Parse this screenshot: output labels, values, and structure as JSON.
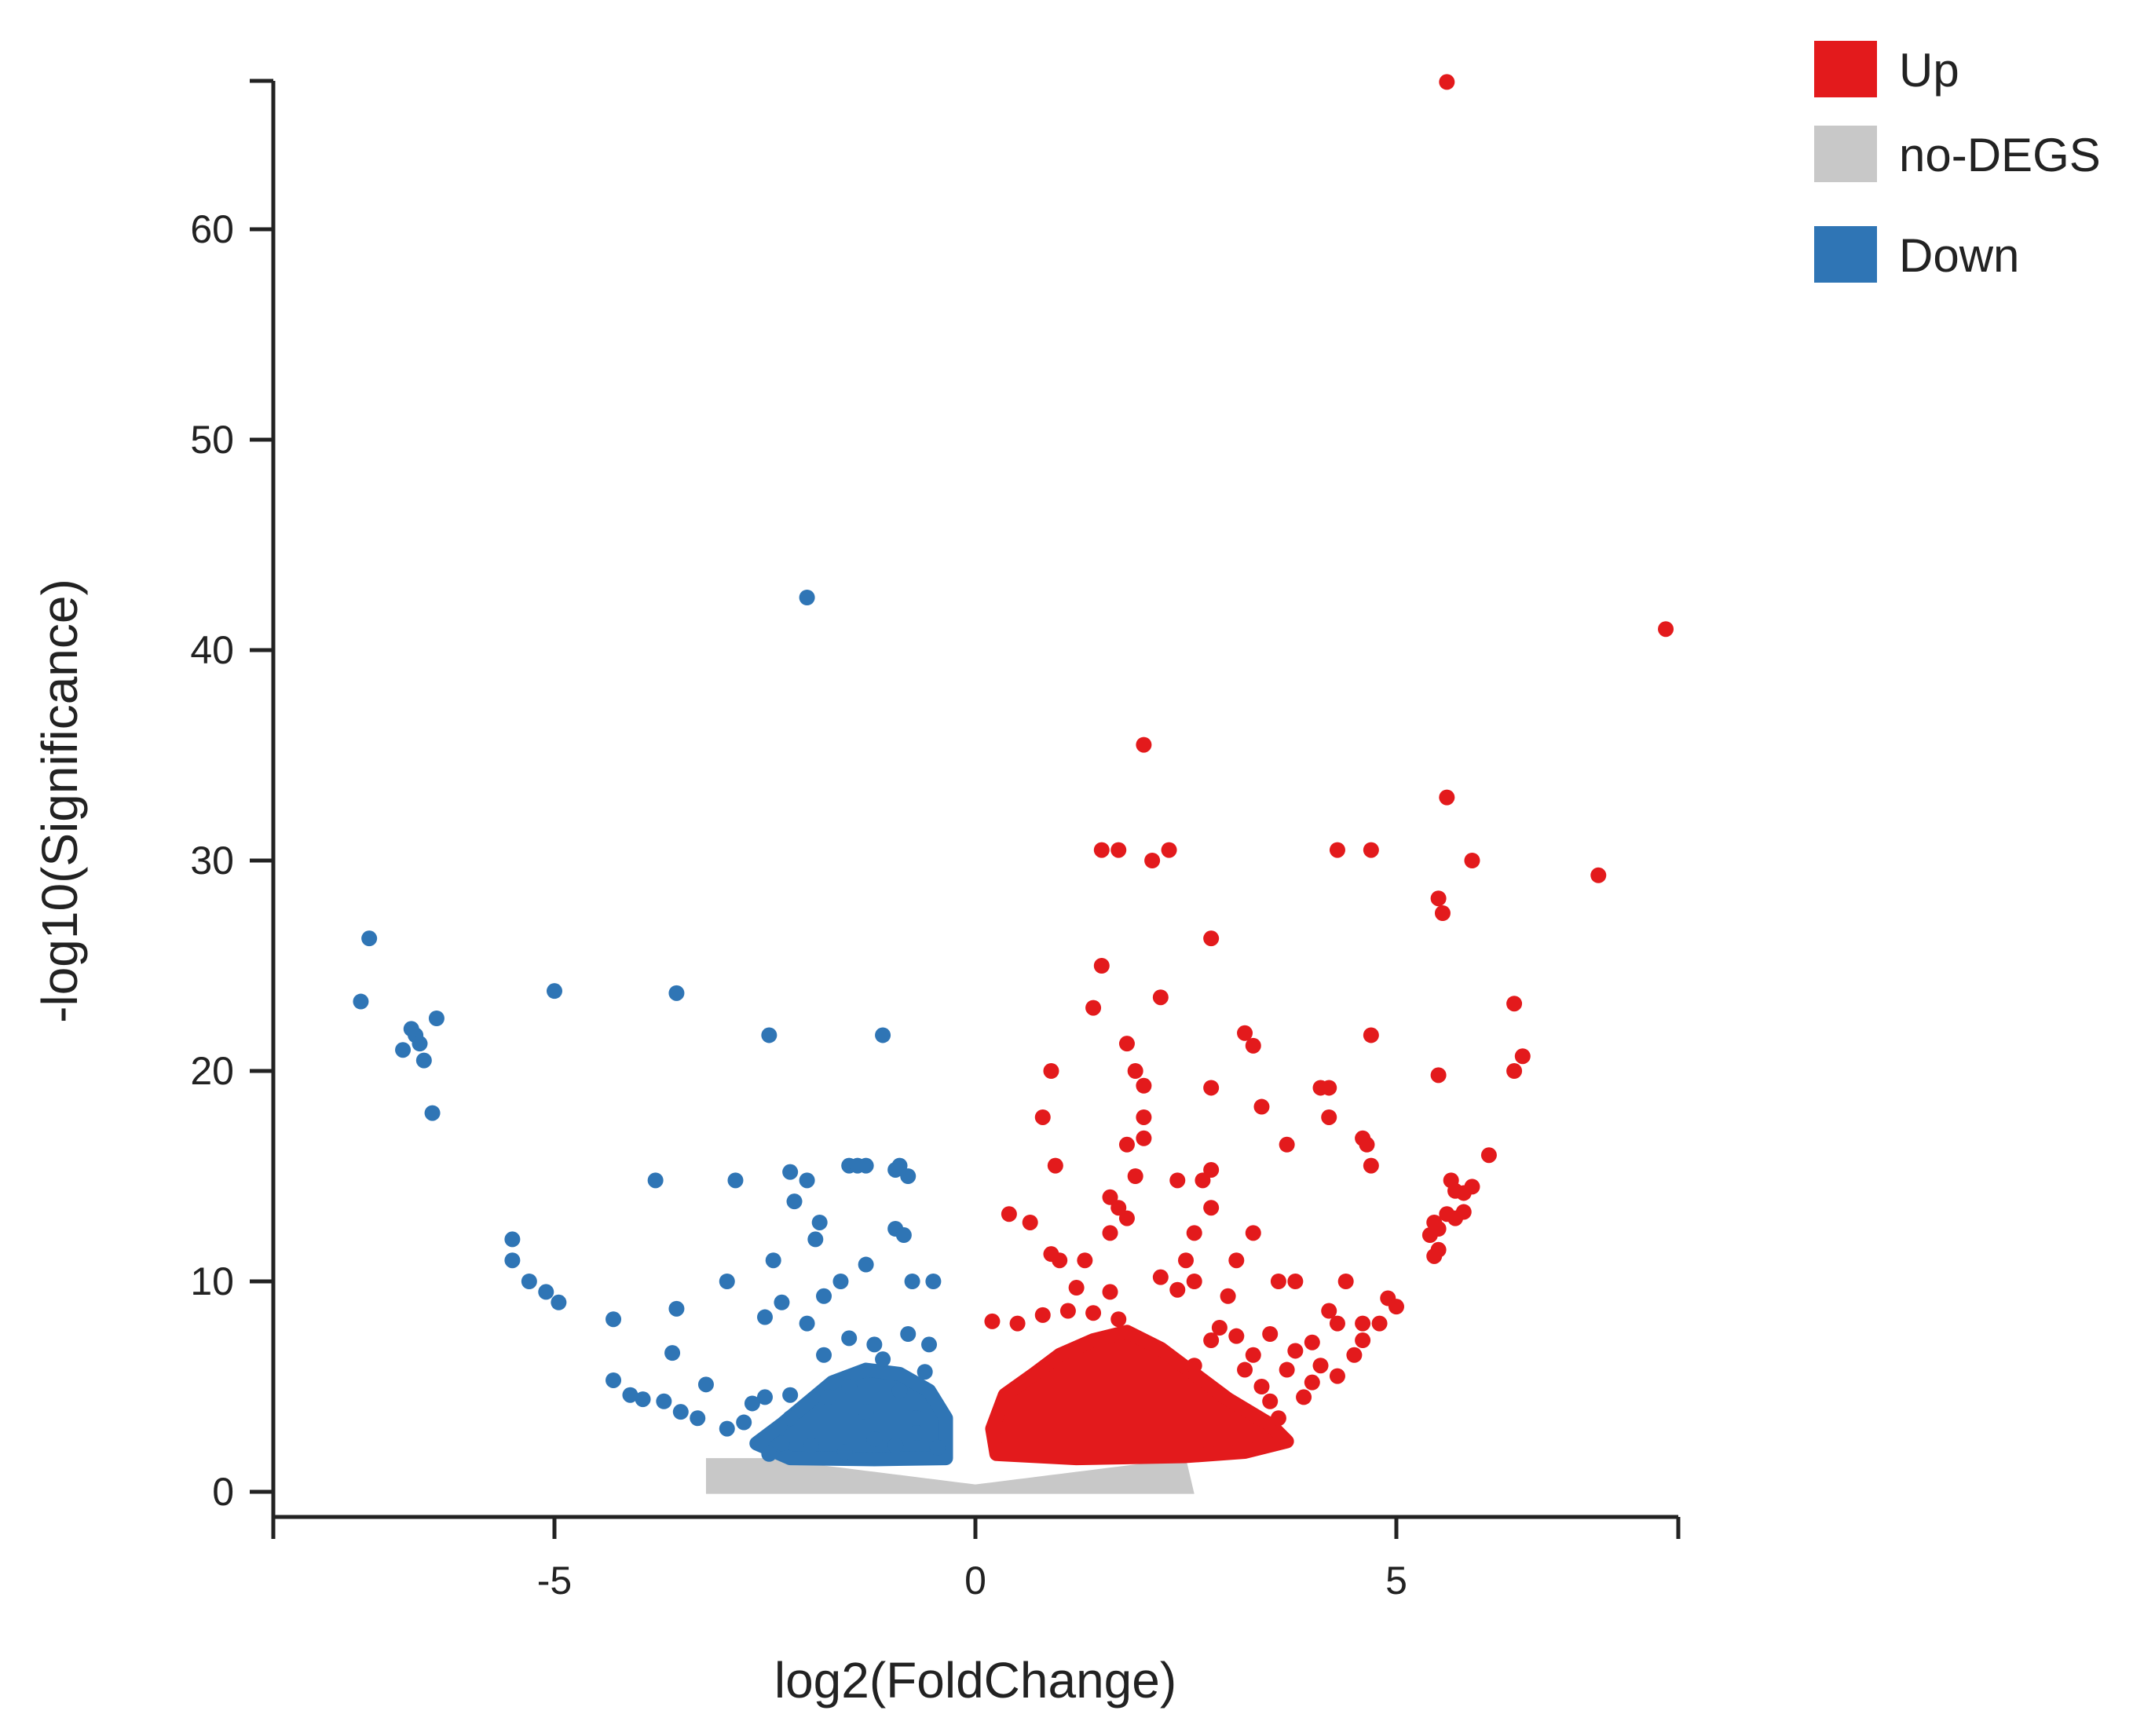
{
  "chart_data": {
    "type": "scatter",
    "title": "",
    "xlabel": "log2(FoldChange)",
    "ylabel": "-log10(Significance)",
    "xlim": [
      -8.4,
      8.4
    ],
    "ylim": [
      -1,
      67
    ],
    "x_ticks": [
      -5,
      0,
      5
    ],
    "x_tick_labels": [
      "-5",
      "0",
      "5"
    ],
    "y_ticks": [
      0,
      10,
      20,
      30,
      40,
      50,
      60
    ],
    "y_tick_labels": [
      "0",
      "10",
      "20",
      "30",
      "40",
      "50",
      "60"
    ],
    "grid": false,
    "legend_position": "top-right",
    "series": [
      {
        "name": "Up",
        "color": "#e31a1c",
        "points": [
          [
            5.6,
            67
          ],
          [
            8.2,
            41
          ],
          [
            2.0,
            35.5
          ],
          [
            5.6,
            33
          ],
          [
            1.5,
            30.5
          ],
          [
            1.7,
            30.5
          ],
          [
            2.3,
            30.5
          ],
          [
            2.1,
            30
          ],
          [
            4.3,
            30.5
          ],
          [
            4.7,
            30.5
          ],
          [
            5.9,
            30
          ],
          [
            7.4,
            29.3
          ],
          [
            5.5,
            28.2
          ],
          [
            5.55,
            27.5
          ],
          [
            2.8,
            26.3
          ],
          [
            1.5,
            25
          ],
          [
            2.2,
            23.5
          ],
          [
            1.4,
            23
          ],
          [
            6.4,
            23.2
          ],
          [
            3.2,
            21.8
          ],
          [
            3.3,
            21.2
          ],
          [
            4.7,
            21.7
          ],
          [
            1.8,
            21.3
          ],
          [
            6.5,
            20.7
          ],
          [
            0.9,
            20
          ],
          [
            1.9,
            20
          ],
          [
            2.0,
            19.3
          ],
          [
            5.5,
            19.8
          ],
          [
            6.4,
            20
          ],
          [
            4.1,
            19.2
          ],
          [
            4.2,
            19.2
          ],
          [
            2.8,
            19.2
          ],
          [
            3.4,
            18.3
          ],
          [
            0.8,
            17.8
          ],
          [
            2.0,
            17.8
          ],
          [
            4.2,
            17.8
          ],
          [
            1.8,
            16.5
          ],
          [
            2.0,
            16.8
          ],
          [
            4.6,
            16.8
          ],
          [
            4.65,
            16.5
          ],
          [
            3.7,
            16.5
          ],
          [
            6.1,
            16.0
          ],
          [
            0.95,
            15.5
          ],
          [
            2.8,
            15.3
          ],
          [
            4.7,
            15.5
          ],
          [
            1.9,
            15.0
          ],
          [
            2.4,
            14.8
          ],
          [
            2.7,
            14.8
          ],
          [
            5.65,
            14.8
          ],
          [
            5.7,
            14.3
          ],
          [
            5.8,
            14.2
          ],
          [
            5.9,
            14.5
          ],
          [
            1.6,
            14.0
          ],
          [
            1.7,
            13.5
          ],
          [
            1.8,
            13.0
          ],
          [
            2.8,
            13.5
          ],
          [
            5.6,
            13.2
          ],
          [
            5.7,
            13.0
          ],
          [
            5.8,
            13.3
          ],
          [
            5.45,
            12.8
          ],
          [
            5.5,
            12.5
          ],
          [
            5.4,
            12.2
          ],
          [
            0.4,
            13.2
          ],
          [
            0.65,
            12.8
          ],
          [
            1.6,
            12.3
          ],
          [
            2.6,
            12.3
          ],
          [
            3.3,
            12.3
          ],
          [
            5.5,
            11.5
          ],
          [
            5.45,
            11.2
          ],
          [
            0.9,
            11.3
          ],
          [
            1.0,
            11.0
          ],
          [
            1.3,
            11.0
          ],
          [
            2.5,
            11.0
          ],
          [
            3.1,
            11.0
          ],
          [
            2.2,
            10.2
          ],
          [
            2.6,
            10.0
          ],
          [
            3.6,
            10.0
          ],
          [
            3.8,
            10.0
          ],
          [
            4.4,
            10.0
          ],
          [
            1.2,
            9.7
          ],
          [
            1.6,
            9.5
          ],
          [
            2.4,
            9.6
          ],
          [
            3.0,
            9.3
          ],
          [
            4.9,
            9.2
          ],
          [
            5.0,
            8.8
          ],
          [
            0.2,
            8.1
          ],
          [
            0.5,
            8.0
          ],
          [
            0.8,
            8.4
          ],
          [
            1.1,
            8.6
          ],
          [
            1.4,
            8.5
          ],
          [
            1.7,
            8.2
          ],
          [
            2.9,
            7.8
          ],
          [
            3.5,
            7.5
          ],
          [
            4.2,
            8.6
          ],
          [
            4.3,
            8.0
          ],
          [
            4.6,
            8.0
          ],
          [
            4.8,
            8.0
          ],
          [
            2.8,
            7.2
          ],
          [
            3.1,
            7.4
          ],
          [
            4.0,
            7.1
          ],
          [
            4.6,
            7.2
          ],
          [
            3.3,
            6.5
          ],
          [
            3.8,
            6.7
          ],
          [
            4.5,
            6.5
          ],
          [
            2.6,
            6.0
          ],
          [
            3.2,
            5.8
          ],
          [
            3.7,
            5.8
          ],
          [
            4.1,
            6.0
          ],
          [
            3.4,
            5.0
          ],
          [
            4.0,
            5.2
          ],
          [
            4.3,
            5.5
          ],
          [
            3.5,
            4.3
          ],
          [
            3.9,
            4.5
          ],
          [
            2.9,
            3.8
          ],
          [
            3.6,
            3.5
          ]
        ]
      },
      {
        "name": "no-DEGS",
        "color": "#c8c8c8",
        "points": []
      },
      {
        "name": "Down",
        "color": "#2f75b5",
        "points": [
          [
            -2.0,
            42.5
          ],
          [
            -7.2,
            26.3
          ],
          [
            -7.3,
            23.3
          ],
          [
            -5.0,
            23.8
          ],
          [
            -3.55,
            23.7
          ],
          [
            -6.4,
            22.5
          ],
          [
            -6.7,
            22.0
          ],
          [
            -6.65,
            21.7
          ],
          [
            -6.6,
            21.3
          ],
          [
            -6.8,
            21.0
          ],
          [
            -6.55,
            20.5
          ],
          [
            -6.45,
            18.0
          ],
          [
            -2.45,
            21.7
          ],
          [
            -1.1,
            21.7
          ],
          [
            -3.8,
            14.8
          ],
          [
            -2.85,
            14.8
          ],
          [
            -2.2,
            15.2
          ],
          [
            -2.0,
            14.8
          ],
          [
            -1.5,
            15.5
          ],
          [
            -1.4,
            15.5
          ],
          [
            -1.3,
            15.5
          ],
          [
            -0.9,
            15.5
          ],
          [
            -0.95,
            15.3
          ],
          [
            -0.8,
            15.0
          ],
          [
            -2.15,
            13.8
          ],
          [
            -1.85,
            12.8
          ],
          [
            -1.9,
            12.0
          ],
          [
            -0.95,
            12.5
          ],
          [
            -0.85,
            12.2
          ],
          [
            -5.5,
            12.0
          ],
          [
            -5.5,
            11.0
          ],
          [
            -5.3,
            10.0
          ],
          [
            -5.1,
            9.5
          ],
          [
            -4.95,
            9.0
          ],
          [
            -2.4,
            11.0
          ],
          [
            -1.3,
            10.8
          ],
          [
            -0.75,
            10.0
          ],
          [
            -0.5,
            10.0
          ],
          [
            -1.6,
            10.0
          ],
          [
            -2.95,
            10.0
          ],
          [
            -1.8,
            9.3
          ],
          [
            -2.3,
            9.0
          ],
          [
            -3.55,
            8.7
          ],
          [
            -4.3,
            8.2
          ],
          [
            -2.5,
            8.3
          ],
          [
            -2.0,
            8.0
          ],
          [
            -3.6,
            6.6
          ],
          [
            -3.2,
            5.1
          ],
          [
            -4.3,
            5.3
          ],
          [
            -4.1,
            4.6
          ],
          [
            -3.95,
            4.4
          ],
          [
            -3.7,
            4.3
          ],
          [
            -3.5,
            3.8
          ],
          [
            -3.3,
            3.5
          ],
          [
            -2.5,
            4.5
          ],
          [
            -2.65,
            4.2
          ],
          [
            -2.2,
            4.6
          ],
          [
            -2.75,
            3.3
          ],
          [
            -2.95,
            3.0
          ],
          [
            -2.2,
            3.5
          ],
          [
            -1.5,
            7.3
          ],
          [
            -1.2,
            7.0
          ],
          [
            -0.8,
            7.5
          ],
          [
            -0.55,
            7.0
          ],
          [
            -1.1,
            6.3
          ],
          [
            -1.8,
            6.5
          ],
          [
            -0.6,
            5.7
          ],
          [
            -1.5,
            5.0
          ],
          [
            -0.9,
            4.8
          ],
          [
            -1.75,
            4.5
          ],
          [
            -1.3,
            3.8
          ],
          [
            -0.7,
            3.5
          ],
          [
            -2.3,
            2.3
          ],
          [
            -2.45,
            1.8
          ],
          [
            -1.95,
            2.2
          ],
          [
            -1.55,
            1.9
          ],
          [
            -1.2,
            2.5
          ],
          [
            -0.95,
            2.2
          ],
          [
            -0.7,
            2.8
          ],
          [
            -0.45,
            2.1
          ]
        ]
      }
    ]
  }
}
